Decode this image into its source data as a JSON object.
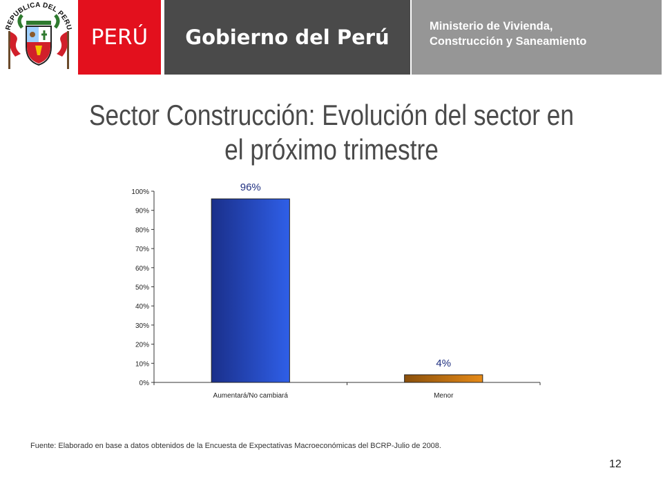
{
  "header": {
    "crest_text": "REPUBLICA DEL PERU",
    "brand": "PERÚ",
    "government": "Gobierno del Perú",
    "ministry_line1": "Ministerio de Vivienda,",
    "ministry_line2": "Construcción y Saneamiento"
  },
  "slide": {
    "title_line1": "Sector Construcción: Evolución del sector en",
    "title_line2": "el próximo trimestre",
    "source": "Fuente: Elaborado en base a datos obtenidos de la  Encuesta de Expectativas Macroeconómicas del BCRP-Julio de 2008.",
    "page_number": "12"
  },
  "chart_data": {
    "type": "bar",
    "categories": [
      "Aumentará/No cambiará",
      "Menor"
    ],
    "values": [
      96,
      4
    ],
    "data_labels": [
      "96%",
      "4%"
    ],
    "ylim": [
      0,
      100
    ],
    "ytick_labels": [
      "0%",
      "10%",
      "20%",
      "30%",
      "40%",
      "50%",
      "60%",
      "70%",
      "80%",
      "90%",
      "100%"
    ],
    "grid": false,
    "bar_colors": [
      "#2f5fe8",
      "#e68a17"
    ],
    "label_color": "#1f2f80"
  }
}
